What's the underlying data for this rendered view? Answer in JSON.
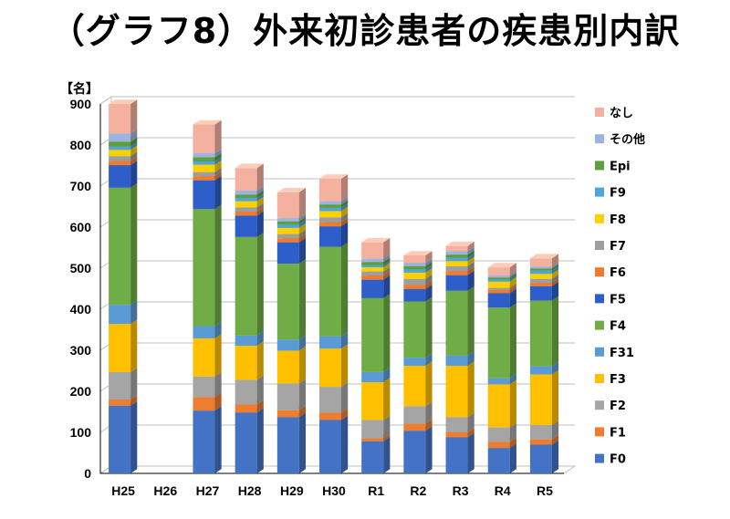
{
  "title": "（グラフ8）外来初診患者の疾患別内訳",
  "chart_data": {
    "type": "bar",
    "stacked": true,
    "three_d": true,
    "title": "（グラフ8）外来初診患者の疾患別内訳",
    "ylabel": "【名】",
    "xlabel": "",
    "ylim": [
      0,
      900
    ],
    "yticks": [
      0,
      100,
      200,
      300,
      400,
      500,
      600,
      700,
      800,
      900
    ],
    "grid": true,
    "legend_position": "right",
    "categories": [
      "H25",
      "H26",
      "H27",
      "H28",
      "H29",
      "H30",
      "R1",
      "R2",
      "R3",
      "R4",
      "R5"
    ],
    "series": [
      {
        "name": "F0",
        "color": "#4472C4",
        "values": [
          165,
          0,
          153,
          148,
          137,
          130,
          78,
          104,
          88,
          62,
          70
        ]
      },
      {
        "name": "F1",
        "color": "#ED7D31",
        "values": [
          15,
          0,
          33,
          20,
          17,
          18,
          7,
          17,
          12,
          15,
          13
        ]
      },
      {
        "name": "F2",
        "color": "#A5A5A5",
        "values": [
          67,
          0,
          50,
          60,
          65,
          63,
          45,
          43,
          37,
          35,
          35
        ]
      },
      {
        "name": "F3",
        "color": "#FFC000",
        "values": [
          117,
          0,
          93,
          83,
          80,
          93,
          92,
          98,
          125,
          105,
          123
        ]
      },
      {
        "name": "F31",
        "color": "#5B9BD5",
        "values": [
          47,
          0,
          30,
          25,
          27,
          30,
          25,
          20,
          25,
          15,
          20
        ]
      },
      {
        "name": "F4",
        "color": "#70AD47",
        "values": [
          285,
          0,
          285,
          240,
          185,
          218,
          180,
          137,
          158,
          172,
          160
        ]
      },
      {
        "name": "F5",
        "color": "#2E5EC9",
        "values": [
          55,
          0,
          70,
          52,
          52,
          50,
          45,
          30,
          38,
          35,
          35
        ]
      },
      {
        "name": "F6",
        "color": "#F07B2C",
        "values": [
          10,
          0,
          10,
          10,
          10,
          10,
          10,
          10,
          10,
          8,
          8
        ]
      },
      {
        "name": "F7",
        "color": "#9E9E9E",
        "values": [
          12,
          0,
          10,
          10,
          10,
          12,
          10,
          15,
          12,
          5,
          10
        ]
      },
      {
        "name": "F8",
        "color": "#FFD000",
        "values": [
          15,
          0,
          18,
          15,
          15,
          15,
          10,
          15,
          12,
          15,
          12
        ]
      },
      {
        "name": "F9",
        "color": "#4FA3DF",
        "values": [
          8,
          0,
          8,
          8,
          8,
          8,
          5,
          8,
          8,
          5,
          8
        ]
      },
      {
        "name": "Epi",
        "color": "#5E9E3C",
        "values": [
          12,
          0,
          10,
          8,
          8,
          8,
          8,
          8,
          8,
          5,
          5
        ]
      },
      {
        "name": "その他",
        "color": "#9DB3E0",
        "values": [
          20,
          0,
          10,
          10,
          8,
          8,
          8,
          8,
          8,
          5,
          5
        ]
      },
      {
        "name": "なし",
        "color": "#F4B1A0",
        "values": [
          72,
          0,
          70,
          55,
          63,
          55,
          40,
          18,
          13,
          20,
          20
        ]
      }
    ]
  }
}
